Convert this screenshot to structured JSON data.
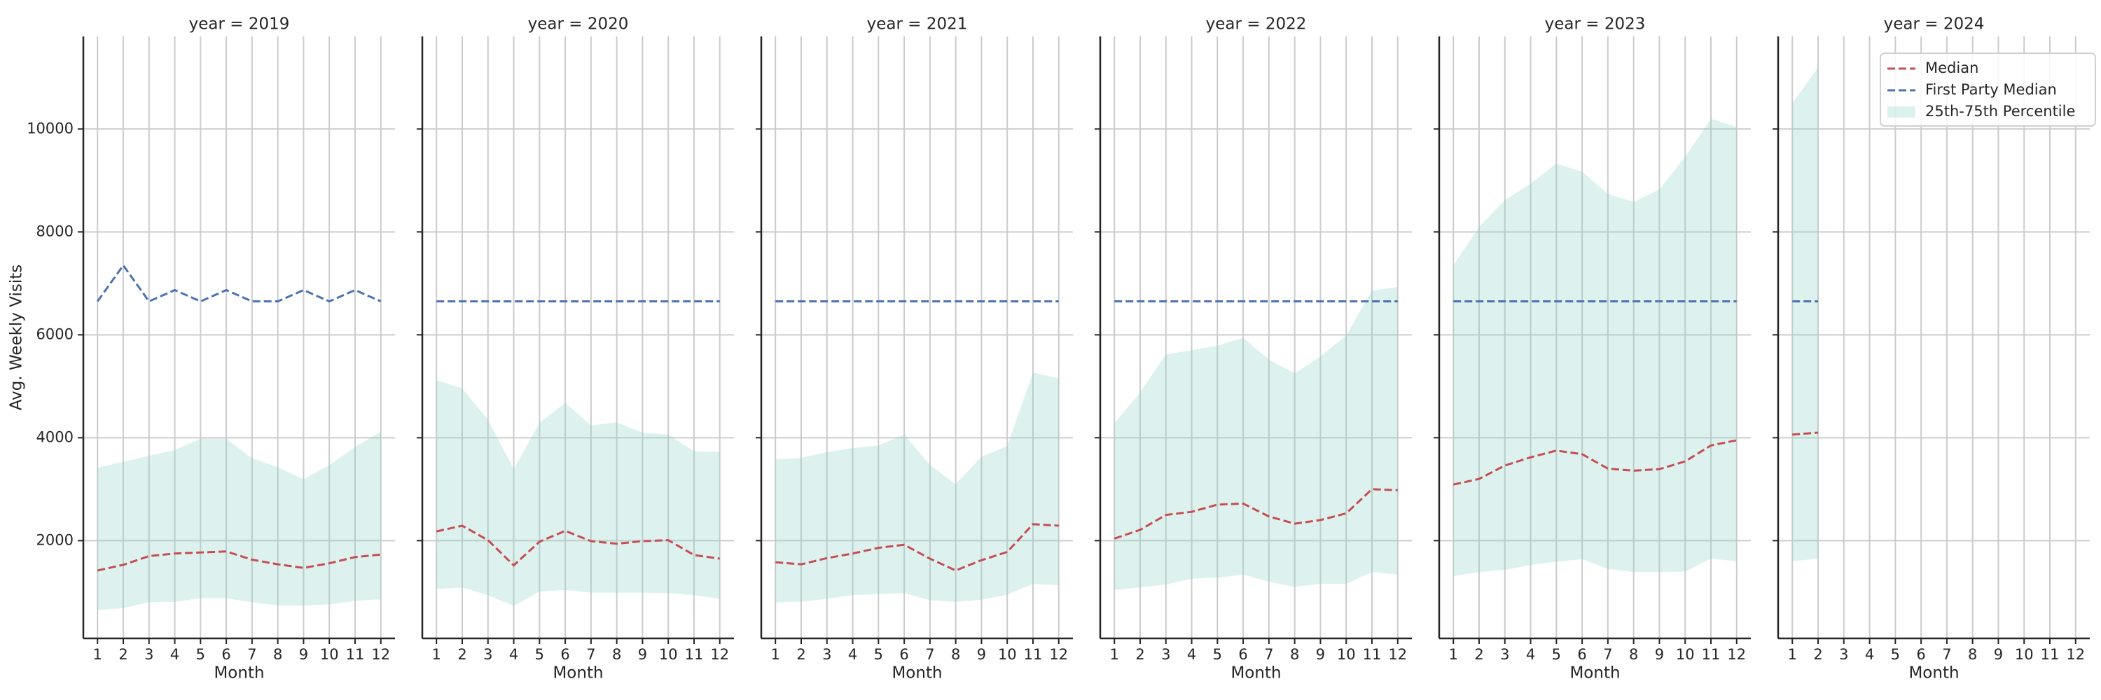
{
  "chart_data": [
    {
      "type": "line",
      "title": "year = 2019",
      "ylabel": "Avg. Weekly Visits",
      "xlabel": "Month",
      "x": [
        1,
        2,
        3,
        4,
        5,
        6,
        7,
        8,
        9,
        10,
        11,
        12
      ],
      "series": [
        {
          "name": "Median",
          "color": "#c44e52",
          "dashed": true,
          "values": [
            1420,
            1530,
            1700,
            1750,
            1770,
            1790,
            1630,
            1540,
            1470,
            1560,
            1680,
            1730
          ]
        },
        {
          "name": "First Party Median",
          "color": "#4c72b0",
          "dashed": true,
          "values": [
            6650,
            7350,
            6650,
            6870,
            6650,
            6870,
            6650,
            6650,
            6870,
            6650,
            6870,
            6650
          ]
        },
        {
          "name": "25th-75th Percentile",
          "color": "#8dd3c7",
          "band": true,
          "lower": [
            650,
            690,
            800,
            810,
            880,
            880,
            800,
            740,
            740,
            760,
            830,
            860
          ],
          "upper": [
            3420,
            3530,
            3650,
            3760,
            3980,
            3980,
            3600,
            3430,
            3190,
            3470,
            3820,
            4120
          ]
        }
      ],
      "xlim": [
        0.45,
        12.55
      ],
      "xticks": [
        1,
        2,
        3,
        4,
        5,
        6,
        7,
        8,
        9,
        10,
        11,
        12
      ],
      "ylim": [
        100,
        11800
      ],
      "yticks": [
        2000,
        4000,
        6000,
        8000,
        10000
      ],
      "grid": true
    },
    {
      "type": "line",
      "title": "year = 2020",
      "xlabel": "Month",
      "x": [
        1,
        2,
        3,
        4,
        5,
        6,
        7,
        8,
        9,
        10,
        11,
        12
      ],
      "series": [
        {
          "name": "Median",
          "color": "#c44e52",
          "dashed": true,
          "values": [
            2180,
            2290,
            2010,
            1520,
            1980,
            2190,
            1990,
            1940,
            1990,
            2010,
            1720,
            1650
          ]
        },
        {
          "name": "First Party Median",
          "color": "#4c72b0",
          "dashed": true,
          "values": [
            6650,
            6650,
            6650,
            6650,
            6650,
            6650,
            6650,
            6650,
            6650,
            6650,
            6650,
            6650
          ]
        },
        {
          "name": "25th-75th Percentile",
          "color": "#8dd3c7",
          "band": true,
          "lower": [
            1060,
            1090,
            940,
            730,
            1010,
            1040,
            990,
            990,
            990,
            980,
            940,
            870
          ],
          "upper": [
            5120,
            4960,
            4350,
            3390,
            4290,
            4680,
            4240,
            4300,
            4100,
            4060,
            3740,
            3730
          ]
        }
      ],
      "xlim": [
        0.45,
        12.55
      ],
      "xticks": [
        1,
        2,
        3,
        4,
        5,
        6,
        7,
        8,
        9,
        10,
        11,
        12
      ],
      "ylim": [
        100,
        11800
      ],
      "yticks": [
        2000,
        4000,
        6000,
        8000,
        10000
      ],
      "grid": true
    },
    {
      "type": "line",
      "title": "year = 2021",
      "xlabel": "Month",
      "x": [
        1,
        2,
        3,
        4,
        5,
        6,
        7,
        8,
        9,
        10,
        11,
        12
      ],
      "series": [
        {
          "name": "Median",
          "color": "#c44e52",
          "dashed": true,
          "values": [
            1580,
            1540,
            1660,
            1750,
            1860,
            1920,
            1650,
            1420,
            1620,
            1780,
            2320,
            2290
          ]
        },
        {
          "name": "First Party Median",
          "color": "#4c72b0",
          "dashed": true,
          "values": [
            6650,
            6650,
            6650,
            6650,
            6650,
            6650,
            6650,
            6650,
            6650,
            6650,
            6650,
            6650
          ]
        },
        {
          "name": "25th-75th Percentile",
          "color": "#8dd3c7",
          "band": true,
          "lower": [
            800,
            810,
            870,
            940,
            960,
            980,
            840,
            810,
            850,
            950,
            1160,
            1130
          ],
          "upper": [
            3580,
            3610,
            3720,
            3800,
            3850,
            4060,
            3470,
            3100,
            3630,
            3840,
            5270,
            5150
          ]
        }
      ],
      "xlim": [
        0.45,
        12.55
      ],
      "xticks": [
        1,
        2,
        3,
        4,
        5,
        6,
        7,
        8,
        9,
        10,
        11,
        12
      ],
      "ylim": [
        100,
        11800
      ],
      "yticks": [
        2000,
        4000,
        6000,
        8000,
        10000
      ],
      "grid": true
    },
    {
      "type": "line",
      "title": "year = 2022",
      "xlabel": "Month",
      "x": [
        1,
        2,
        3,
        4,
        5,
        6,
        7,
        8,
        9,
        10,
        11,
        12
      ],
      "series": [
        {
          "name": "Median",
          "color": "#c44e52",
          "dashed": true,
          "values": [
            2040,
            2210,
            2500,
            2560,
            2700,
            2720,
            2470,
            2330,
            2400,
            2530,
            3000,
            2980
          ]
        },
        {
          "name": "First Party Median",
          "color": "#4c72b0",
          "dashed": true,
          "values": [
            6650,
            6650,
            6650,
            6650,
            6650,
            6650,
            6650,
            6650,
            6650,
            6650,
            6650,
            6650
          ]
        },
        {
          "name": "25th-75th Percentile",
          "color": "#8dd3c7",
          "band": true,
          "lower": [
            1040,
            1090,
            1150,
            1260,
            1280,
            1340,
            1200,
            1100,
            1160,
            1160,
            1390,
            1340
          ],
          "upper": [
            4280,
            4880,
            5620,
            5700,
            5790,
            5940,
            5520,
            5250,
            5580,
            5990,
            6860,
            6930
          ]
        }
      ],
      "xlim": [
        0.45,
        12.55
      ],
      "xticks": [
        1,
        2,
        3,
        4,
        5,
        6,
        7,
        8,
        9,
        10,
        11,
        12
      ],
      "ylim": [
        100,
        11800
      ],
      "yticks": [
        2000,
        4000,
        6000,
        8000,
        10000
      ],
      "grid": true
    },
    {
      "type": "line",
      "title": "year = 2023",
      "xlabel": "Month",
      "x": [
        1,
        2,
        3,
        4,
        5,
        6,
        7,
        8,
        9,
        10,
        11,
        12
      ],
      "series": [
        {
          "name": "Median",
          "color": "#c44e52",
          "dashed": true,
          "values": [
            3090,
            3200,
            3460,
            3620,
            3750,
            3680,
            3400,
            3360,
            3390,
            3540,
            3850,
            3950
          ]
        },
        {
          "name": "First Party Median",
          "color": "#4c72b0",
          "dashed": true,
          "values": [
            6650,
            6650,
            6650,
            6650,
            6650,
            6650,
            6650,
            6650,
            6650,
            6650,
            6650,
            6650
          ]
        },
        {
          "name": "25th-75th Percentile",
          "color": "#8dd3c7",
          "band": true,
          "lower": [
            1310,
            1390,
            1430,
            1530,
            1590,
            1640,
            1450,
            1390,
            1390,
            1400,
            1650,
            1600
          ],
          "upper": [
            7350,
            8100,
            8620,
            8940,
            9330,
            9170,
            8740,
            8580,
            8830,
            9460,
            10200,
            10040
          ]
        }
      ],
      "xlim": [
        0.45,
        12.55
      ],
      "xticks": [
        1,
        2,
        3,
        4,
        5,
        6,
        7,
        8,
        9,
        10,
        11,
        12
      ],
      "ylim": [
        100,
        11800
      ],
      "yticks": [
        2000,
        4000,
        6000,
        8000,
        10000
      ],
      "grid": true
    },
    {
      "type": "line",
      "title": "year = 2024",
      "xlabel": "Month",
      "x": [
        1,
        2
      ],
      "series": [
        {
          "name": "Median",
          "color": "#c44e52",
          "dashed": true,
          "values": [
            4060,
            4100
          ]
        },
        {
          "name": "First Party Median",
          "color": "#4c72b0",
          "dashed": true,
          "values": [
            6650,
            6650
          ]
        },
        {
          "name": "25th-75th Percentile",
          "color": "#8dd3c7",
          "band": true,
          "lower": [
            1600,
            1650
          ],
          "upper": [
            10500,
            11200
          ]
        }
      ],
      "xlim": [
        0.45,
        12.55
      ],
      "xticks": [
        1,
        2,
        3,
        4,
        5,
        6,
        7,
        8,
        9,
        10,
        11,
        12
      ],
      "ylim": [
        100,
        11800
      ],
      "yticks": [
        2000,
        4000,
        6000,
        8000,
        10000
      ],
      "grid": true,
      "legend": "upper right"
    }
  ]
}
